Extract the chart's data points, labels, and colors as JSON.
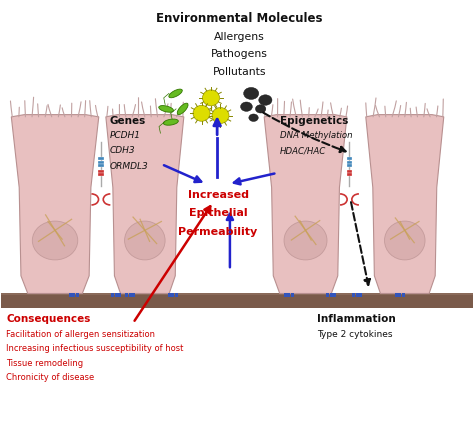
{
  "title": "Environmental Molecules",
  "subtitle_lines": [
    "Allergens",
    "Pathogens",
    "Pollutants"
  ],
  "genes_label": "Genes",
  "genes_items": [
    "PCDH1",
    "CDH3",
    "ORMDL3"
  ],
  "epigenetics_label": "Epigenetics",
  "epigenetics_items": [
    "DNA Methylation",
    "HDAC/HAC"
  ],
  "center_label_lines": [
    "Increased",
    "Epithelial",
    "Permeability"
  ],
  "consequences_label": "Consequences",
  "consequences_items": [
    "Facilitation of allergen sensitization",
    "Increasing infectious susceptibility of host",
    "Tissue remodeling",
    "Chronicity of disease"
  ],
  "inflammation_label": "Inflammation",
  "inflammation_sub": "Type 2 cytokines",
  "bg_color": "#ffffff",
  "cell_color": "#e8c0c0",
  "cell_dark_color": "#d4a8a8",
  "cell_edge_color": "#b89090",
  "base_color": "#7a5a4a",
  "base_top_color": "#8a6a5a",
  "arrow_blue": "#2222cc",
  "arrow_red": "#cc0000",
  "arrow_black": "#111111",
  "text_red": "#cc0000",
  "text_black": "#111111",
  "text_blue": "#0000cc",
  "cilia_color": "#c0a0a0",
  "gap_color": "#aaaaaa"
}
